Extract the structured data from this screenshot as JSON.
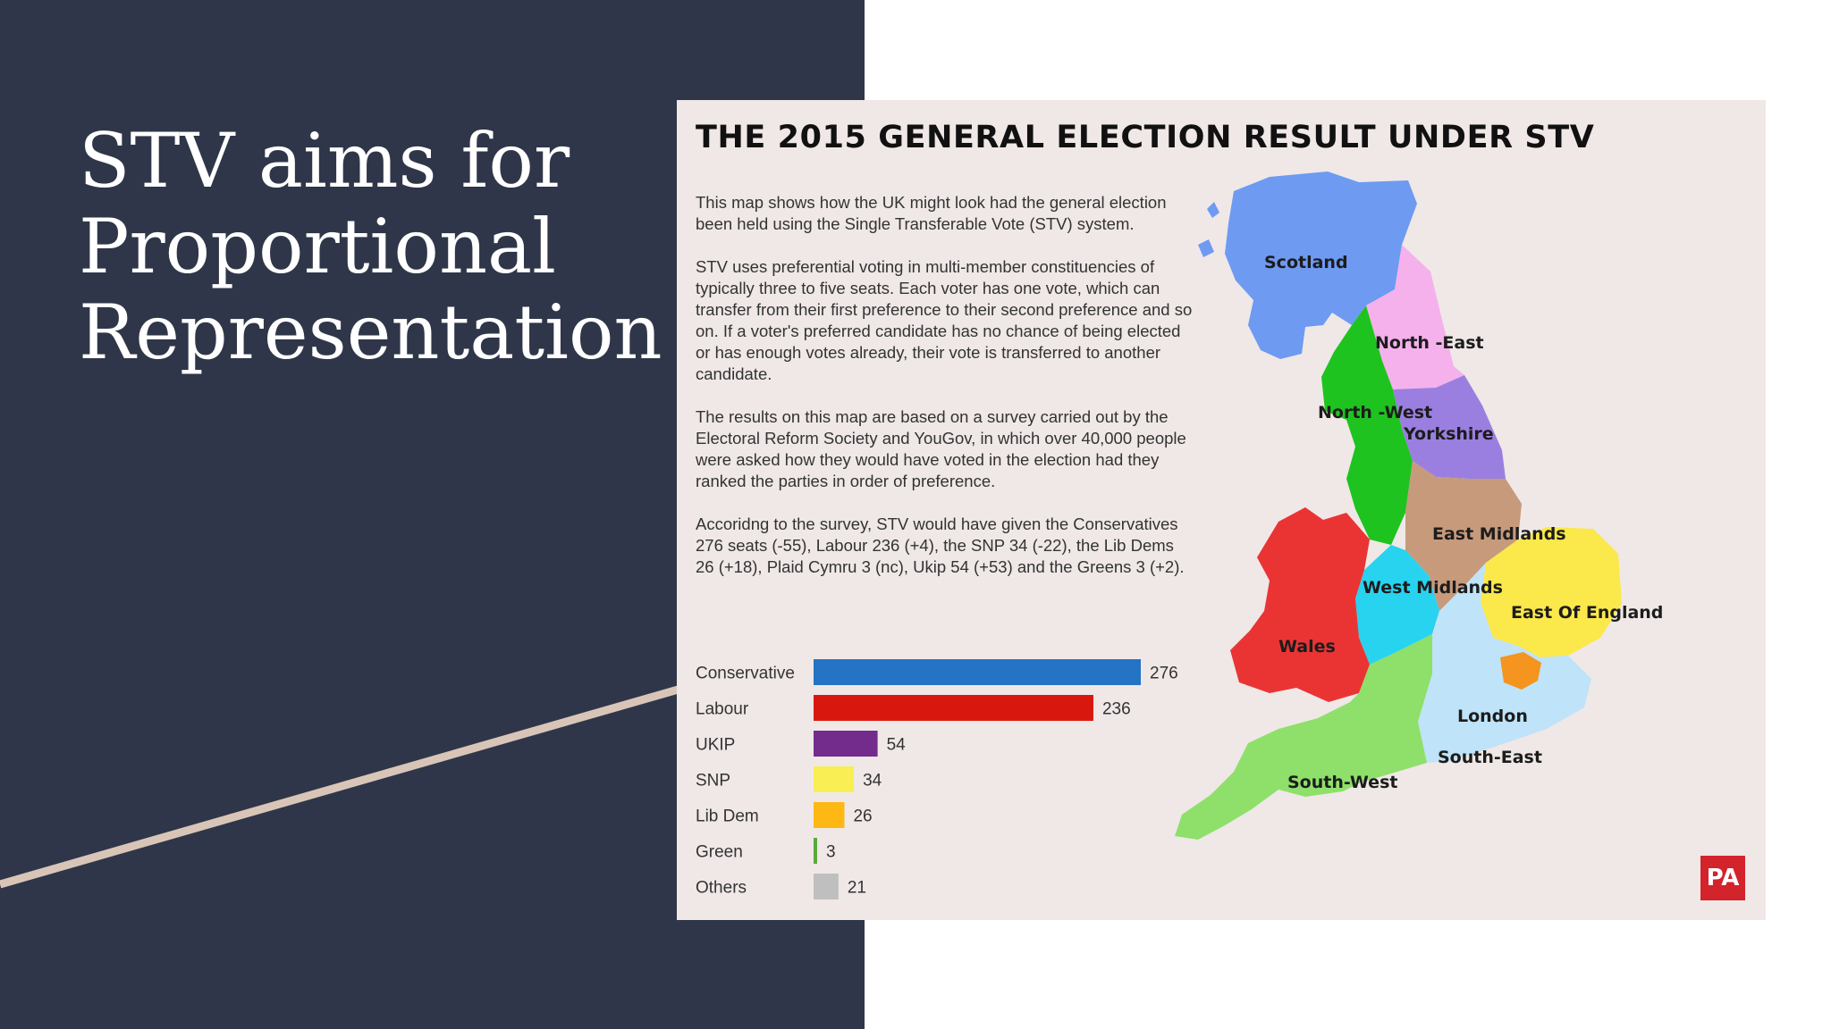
{
  "slide": {
    "title_line1": "STV aims for",
    "title_line2": "Proportional",
    "title_line3": "Representation",
    "colors": {
      "panel": "#2f3649",
      "accent_line": "#d9c5b7"
    }
  },
  "infographic": {
    "title": "THE 2015 GENERAL ELECTION RESULT UNDER STV",
    "paragraphs": [
      "This map shows how the UK might look had the general election been held using the Single Transferable Vote (STV) system.",
      "STV uses preferential voting in multi-member constituencies of typically three to five seats. Each voter has one vote, which can transfer from their first preference to their second preference and so on. If a voter's preferred candidate has no chance of being elected or has enough votes already, their vote is transferred to another candidate.",
      "The results on this map are based on a survey carried out by the Electoral Reform Society and YouGov, in which over 40,000 people were asked how they would have voted in the election had they ranked the parties in order of preference.",
      "Accoridng to the survey, STV would have given the Conservatives 276 seats (-55), Labour 236 (+4), the SNP 34 (-22), the Lib Dems 26 (+18), Plaid Cymru 3 (nc), Ukip 54 (+53) and the Greens 3 (+2)."
    ],
    "logo": "PA",
    "map": {
      "regions": [
        {
          "name": "Scotland",
          "color": "#6e9af2"
        },
        {
          "name": "North -East",
          "color": "#f4b1ec"
        },
        {
          "name": "North -West",
          "color": "#1fc31f"
        },
        {
          "name": "Yorkshire",
          "color": "#9a7fe0"
        },
        {
          "name": "East Midlands",
          "color": "#c79a7c"
        },
        {
          "name": "West Midlands",
          "color": "#28d3ef"
        },
        {
          "name": "Wales",
          "color": "#ea3434"
        },
        {
          "name": "East Of England",
          "color": "#fbe84a"
        },
        {
          "name": "London",
          "color": "#f5941e"
        },
        {
          "name": "South-East",
          "color": "#bfe3f8"
        },
        {
          "name": "South-West",
          "color": "#8ee06a"
        }
      ]
    }
  },
  "chart_data": {
    "type": "bar",
    "orientation": "horizontal",
    "categories": [
      "Conservative",
      "Labour",
      "UKIP",
      "SNP",
      "Lib Dem",
      "Green",
      "Others"
    ],
    "values": [
      276,
      236,
      54,
      34,
      26,
      3,
      21
    ],
    "colors": [
      "#2473c4",
      "#d8180e",
      "#742c8c",
      "#f9ee54",
      "#fdb813",
      "#5ba838",
      "#bfbfbf"
    ],
    "title": "",
    "xlabel": "",
    "ylabel": "",
    "grid": false,
    "value_labels": true
  }
}
